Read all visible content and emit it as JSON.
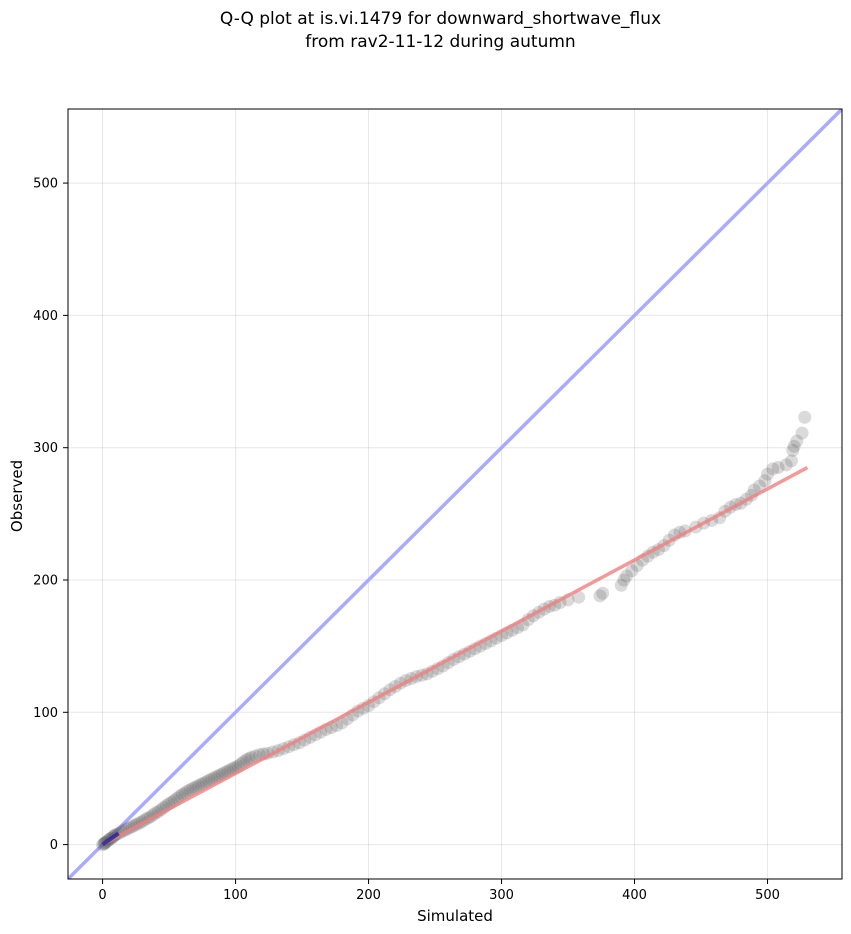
{
  "chart_data": {
    "type": "scatter",
    "title_line1": "Q-Q plot at is.vi.1479 for downward_shortwave_flux",
    "title_line2": "from rav2-11-12 during autumn",
    "xlabel": "Simulated",
    "ylabel": "Observed",
    "xlim": [
      -26,
      556
    ],
    "ylim": [
      -26,
      556
    ],
    "xticks": [
      0,
      100,
      200,
      300,
      400,
      500
    ],
    "yticks": [
      0,
      100,
      200,
      300,
      400,
      500
    ],
    "grid": true,
    "reference_line": {
      "name": "1:1",
      "slope": 1,
      "intercept": 0,
      "color": "#aaaaff"
    },
    "fit_line": {
      "x": [
        0,
        530
      ],
      "y": [
        0,
        285
      ],
      "color": "#f08080"
    },
    "point_color": "#555555",
    "points": [
      [
        0,
        0
      ],
      [
        1,
        0.5
      ],
      [
        1.5,
        1
      ],
      [
        2,
        1.5
      ],
      [
        3,
        2
      ],
      [
        4,
        3
      ],
      [
        5,
        4
      ],
      [
        6,
        4.5
      ],
      [
        7,
        5
      ],
      [
        8,
        6
      ],
      [
        9,
        7
      ],
      [
        10,
        7.5
      ],
      [
        12,
        8.5
      ],
      [
        14,
        9.5
      ],
      [
        16,
        10.5
      ],
      [
        18,
        11.5
      ],
      [
        20,
        12.5
      ],
      [
        22,
        13.5
      ],
      [
        24,
        14.5
      ],
      [
        26,
        15.5
      ],
      [
        28,
        16.5
      ],
      [
        30,
        17.5
      ],
      [
        32,
        19
      ],
      [
        34,
        20
      ],
      [
        36,
        21
      ],
      [
        38,
        22.5
      ],
      [
        40,
        24
      ],
      [
        42,
        25
      ],
      [
        44,
        26.5
      ],
      [
        46,
        28
      ],
      [
        48,
        29.5
      ],
      [
        50,
        31
      ],
      [
        52,
        32
      ],
      [
        54,
        33.5
      ],
      [
        56,
        35
      ],
      [
        58,
        36.5
      ],
      [
        60,
        38
      ],
      [
        62,
        39
      ],
      [
        64,
        40.5
      ],
      [
        66,
        41.5
      ],
      [
        68,
        42.5
      ],
      [
        70,
        43.5
      ],
      [
        72,
        44.5
      ],
      [
        74,
        45.5
      ],
      [
        76,
        46.5
      ],
      [
        78,
        47.5
      ],
      [
        80,
        48.5
      ],
      [
        82,
        49.5
      ],
      [
        84,
        50.5
      ],
      [
        86,
        51.5
      ],
      [
        88,
        52.5
      ],
      [
        90,
        53.5
      ],
      [
        92,
        54.5
      ],
      [
        94,
        55.5
      ],
      [
        96,
        56.5
      ],
      [
        98,
        57.5
      ],
      [
        100,
        58.5
      ],
      [
        102,
        59.5
      ],
      [
        104,
        61
      ],
      [
        106,
        62.5
      ],
      [
        108,
        64
      ],
      [
        110,
        65
      ],
      [
        112,
        66
      ],
      [
        115,
        67
      ],
      [
        118,
        68
      ],
      [
        121,
        68.5
      ],
      [
        124,
        69
      ],
      [
        128,
        70
      ],
      [
        132,
        71
      ],
      [
        136,
        72.5
      ],
      [
        140,
        74
      ],
      [
        144,
        75.5
      ],
      [
        148,
        77
      ],
      [
        152,
        79
      ],
      [
        156,
        81
      ],
      [
        160,
        83
      ],
      [
        164,
        85
      ],
      [
        168,
        87
      ],
      [
        172,
        88.5
      ],
      [
        176,
        90
      ],
      [
        180,
        92
      ],
      [
        184,
        95
      ],
      [
        188,
        98
      ],
      [
        192,
        101
      ],
      [
        196,
        103
      ],
      [
        200,
        105
      ],
      [
        204,
        108
      ],
      [
        208,
        111
      ],
      [
        212,
        114
      ],
      [
        216,
        117
      ],
      [
        220,
        119.5
      ],
      [
        224,
        122
      ],
      [
        228,
        124
      ],
      [
        232,
        125.5
      ],
      [
        236,
        127
      ],
      [
        240,
        128
      ],
      [
        244,
        129
      ],
      [
        248,
        131
      ],
      [
        252,
        133
      ],
      [
        256,
        135
      ],
      [
        260,
        137.5
      ],
      [
        264,
        140
      ],
      [
        268,
        142
      ],
      [
        272,
        144
      ],
      [
        276,
        146
      ],
      [
        280,
        148
      ],
      [
        284,
        150
      ],
      [
        288,
        152
      ],
      [
        292,
        154
      ],
      [
        296,
        156
      ],
      [
        300,
        158
      ],
      [
        304,
        160
      ],
      [
        308,
        162
      ],
      [
        312,
        164
      ],
      [
        316,
        166
      ],
      [
        320,
        170
      ],
      [
        324,
        173
      ],
      [
        328,
        175.5
      ],
      [
        332,
        178
      ],
      [
        336,
        180
      ],
      [
        340,
        181
      ],
      [
        344,
        183
      ],
      [
        350,
        185
      ],
      [
        358,
        187
      ],
      [
        374,
        188
      ],
      [
        376,
        190
      ],
      [
        390,
        196
      ],
      [
        392,
        200
      ],
      [
        394,
        203
      ],
      [
        398,
        207
      ],
      [
        402,
        211
      ],
      [
        406,
        215
      ],
      [
        410,
        218
      ],
      [
        414,
        221
      ],
      [
        418,
        223
      ],
      [
        422,
        226
      ],
      [
        426,
        230
      ],
      [
        430,
        234
      ],
      [
        434,
        236
      ],
      [
        438,
        237
      ],
      [
        446,
        240
      ],
      [
        452,
        243
      ],
      [
        458,
        245
      ],
      [
        464,
        247
      ],
      [
        468,
        252
      ],
      [
        472,
        255
      ],
      [
        476,
        257
      ],
      [
        480,
        258
      ],
      [
        484,
        261
      ],
      [
        488,
        264
      ],
      [
        490,
        268
      ],
      [
        494,
        271
      ],
      [
        498,
        275
      ],
      [
        500,
        280
      ],
      [
        504,
        284
      ],
      [
        508,
        285
      ],
      [
        514,
        287
      ],
      [
        518,
        290
      ],
      [
        519,
        298
      ],
      [
        520,
        301
      ],
      [
        522,
        305
      ],
      [
        526,
        311
      ],
      [
        528,
        323
      ]
    ]
  }
}
